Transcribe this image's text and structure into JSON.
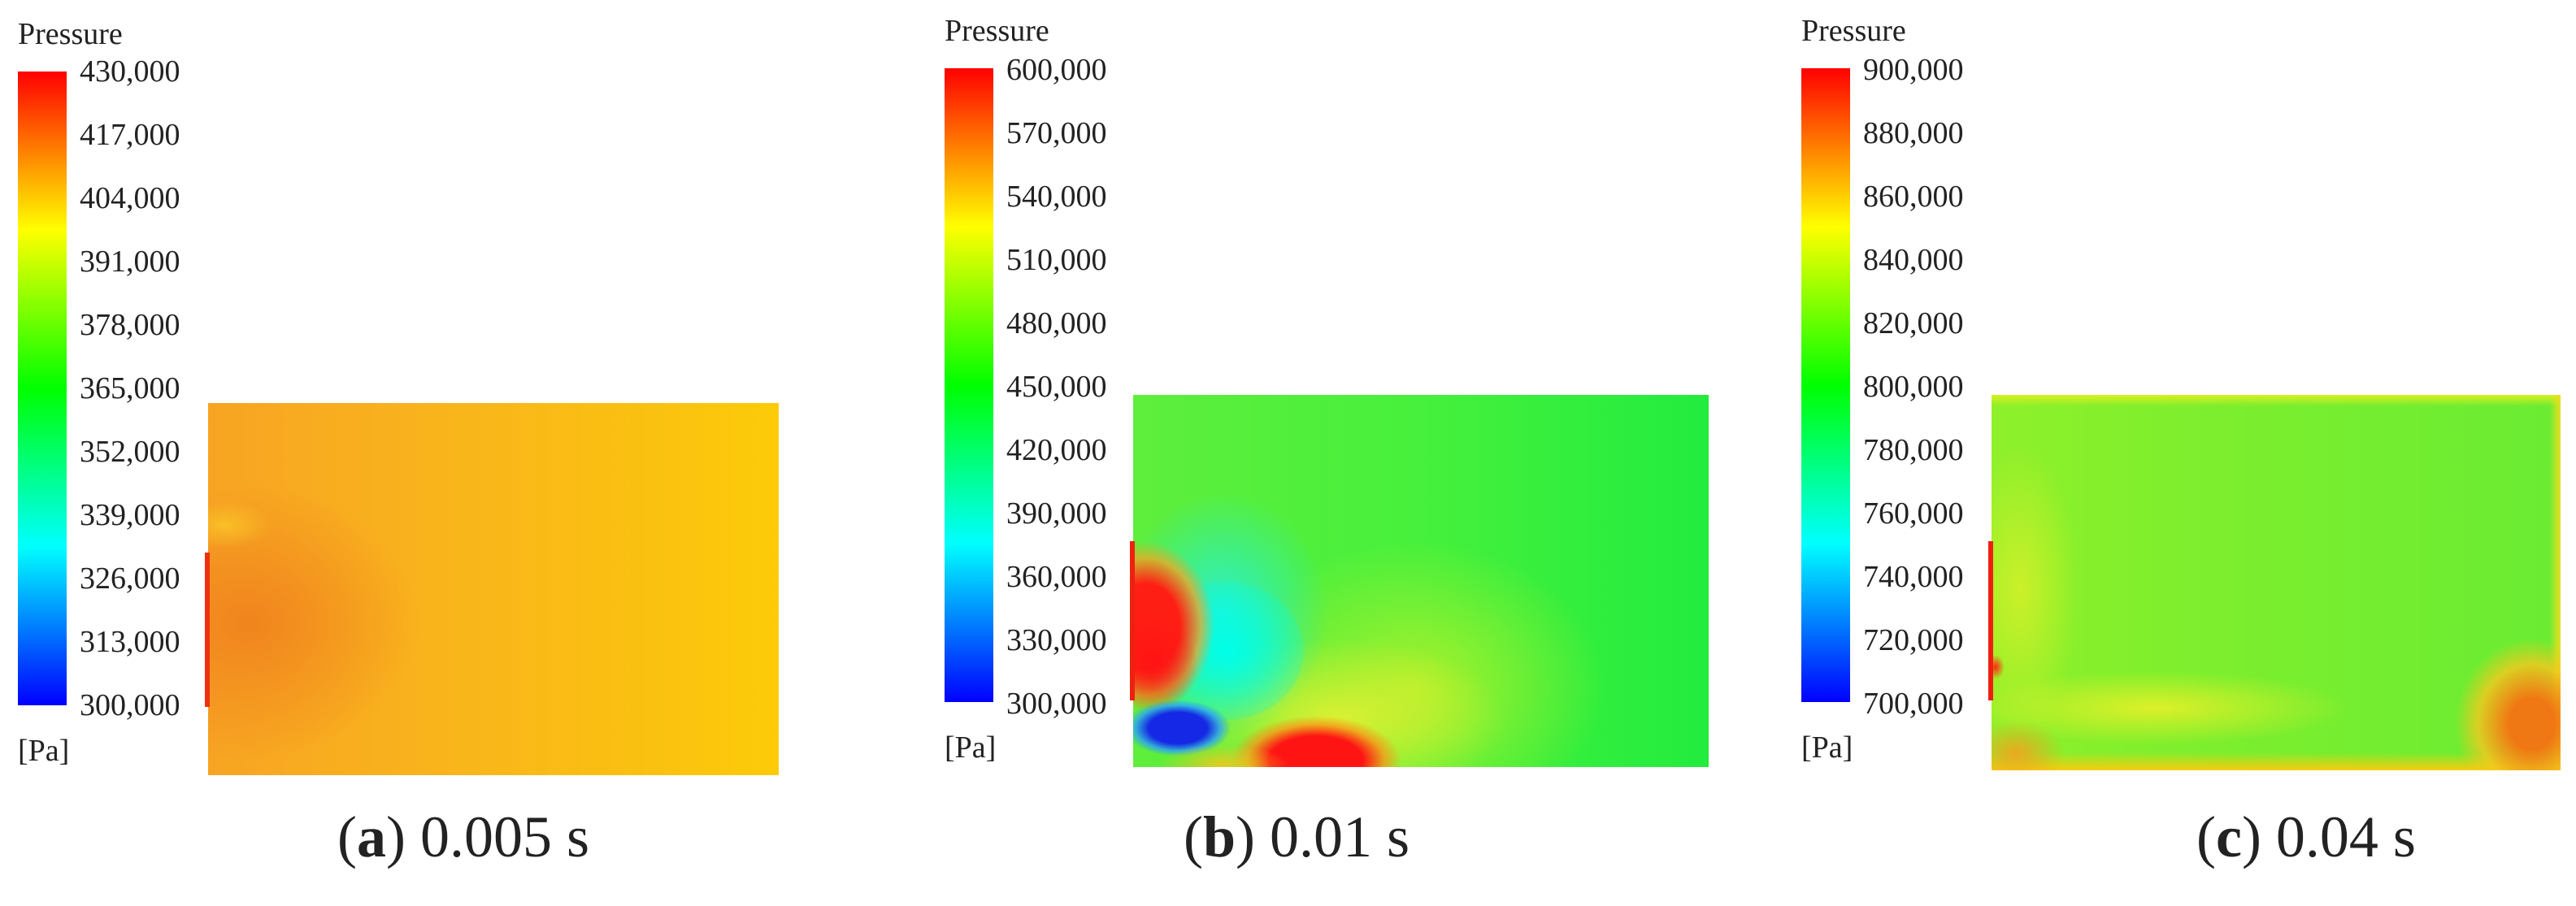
{
  "panels": [
    {
      "legend_title": "Pressure",
      "ticks": [
        "430,000",
        "417,000",
        "404,000",
        "391,000",
        "378,000",
        "365,000",
        "352,000",
        "339,000",
        "326,000",
        "313,000",
        "300,000"
      ],
      "unit": "[Pa]",
      "caption_open": "(",
      "caption_letter": "a",
      "caption_rest": ") 0.005 s"
    },
    {
      "legend_title": "Pressure",
      "ticks": [
        "600,000",
        "570,000",
        "540,000",
        "510,000",
        "480,000",
        "450,000",
        "420,000",
        "390,000",
        "360,000",
        "330,000",
        "300,000"
      ],
      "unit": "[Pa]",
      "caption_open": "(",
      "caption_letter": "b",
      "caption_rest": ") 0.01 s"
    },
    {
      "legend_title": "Pressure",
      "ticks": [
        "900,000",
        "880,000",
        "860,000",
        "840,000",
        "820,000",
        "800,000",
        "780,000",
        "760,000",
        "740,000",
        "720,000",
        "700,000"
      ],
      "unit": "[Pa]",
      "caption_open": "(",
      "caption_letter": "c",
      "caption_rest": ") 0.04 s"
    }
  ],
  "colormap": [
    "#0000ff",
    "#00ffff",
    "#00ff00",
    "#ffff00",
    "#ff0000"
  ]
}
